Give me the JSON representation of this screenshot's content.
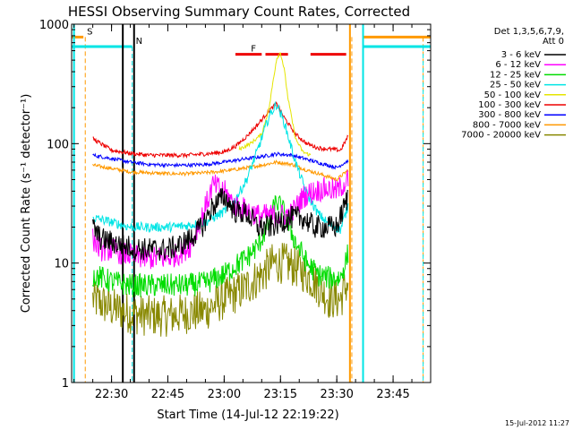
{
  "chart_data": {
    "type": "line",
    "title": "HESSI Observing Summary Count Rates, Corrected",
    "xlabel": "Start Time (14-Jul-12 22:19:22)",
    "ylabel": "Corrected Count Rate (s⁻¹ detector⁻¹)",
    "timestamp": "15-Jul-2012 11:27",
    "yscale": "log",
    "ylim": [
      1,
      1000
    ],
    "xlim": [
      "22:19:22",
      "23:55:00"
    ],
    "x_ticks": [
      "22:30",
      "22:45",
      "23:00",
      "23:15",
      "23:30",
      "23:45"
    ],
    "y_ticks": [
      "1",
      "10",
      "100",
      "1000"
    ],
    "legend": {
      "position": "right",
      "header": [
        "Det 1,3,5,6,7,9,",
        "Att 0"
      ],
      "entries": [
        {
          "label": "3 - 6 keV",
          "color": "#000000"
        },
        {
          "label": "6 - 12 keV",
          "color": "#ff00ff"
        },
        {
          "label": "12 - 25 keV",
          "color": "#00dd00"
        },
        {
          "label": "25 - 50 keV",
          "color": "#00e5e5"
        },
        {
          "label": "50 - 100 keV",
          "color": "#e5e500"
        },
        {
          "label": "100 - 300 keV",
          "color": "#ee0000"
        },
        {
          "label": "300 - 800 keV",
          "color": "#0000ff"
        },
        {
          "label": "800 - 7000 keV",
          "color": "#ff9900"
        },
        {
          "label": "7000 - 20000 keV",
          "color": "#888800"
        }
      ]
    },
    "flags": [
      {
        "label": "S",
        "color": "#ff9900",
        "segments": [
          [
            "22:19:22",
            "22:22:30"
          ],
          [
            "23:37:00",
            "23:55:00"
          ]
        ],
        "level": 780,
        "edges": [
          "22:23:00",
          "23:34:00",
          "23:53:00"
        ]
      },
      {
        "label": "N",
        "color": "#00e5e5",
        "segments": [
          [
            "22:19:22",
            "22:35:30"
          ],
          [
            "23:37:00",
            "23:55:00"
          ]
        ],
        "level": 650,
        "edges": [
          "22:20:00",
          "22:35:30",
          "23:37:00",
          "23:53:00"
        ]
      },
      {
        "label": "F",
        "color": "#ee0000",
        "segments": [
          [
            "23:03:00",
            "23:10:00"
          ],
          [
            "23:11:00",
            "23:17:00"
          ],
          [
            "23:23:00",
            "23:32:30"
          ]
        ],
        "level": 560
      }
    ],
    "data_window": [
      "22:25:00",
      "23:33:00"
    ],
    "attenuator_markers": [
      {
        "time": "22:20:00",
        "color": "#00e5e5"
      },
      {
        "time": "22:33:00",
        "color": "#000000"
      },
      {
        "time": "22:36:00",
        "color": "#000000"
      },
      {
        "time": "23:33:30",
        "color": "#ff9900"
      },
      {
        "time": "23:37:00",
        "color": "#00e5e5"
      }
    ],
    "series": [
      {
        "name": "3 - 6 keV",
        "color": "#000000",
        "noise": 0.2,
        "x": [
          "22:25",
          "22:27",
          "22:30",
          "22:33",
          "22:36",
          "22:39",
          "22:42",
          "22:45",
          "22:48",
          "22:51",
          "22:54",
          "22:57",
          "23:00",
          "23:03",
          "23:06",
          "23:09",
          "23:12",
          "23:15",
          "23:18",
          "23:21",
          "23:24",
          "23:27",
          "23:30",
          "23:33"
        ],
        "y": [
          20,
          16,
          15,
          14,
          13.5,
          13,
          13,
          13,
          14,
          16,
          20,
          30,
          36,
          27,
          26,
          20,
          20,
          22,
          24,
          24,
          20,
          20,
          20,
          36
        ]
      },
      {
        "name": "6 - 12 keV",
        "color": "#ff00ff",
        "noise": 0.2,
        "x": [
          "22:25",
          "22:27",
          "22:30",
          "22:33",
          "22:36",
          "22:39",
          "22:42",
          "22:45",
          "22:48",
          "22:51",
          "22:54",
          "22:57",
          "23:00",
          "23:03",
          "23:06",
          "23:09",
          "23:12",
          "23:15",
          "23:18",
          "23:21",
          "23:24",
          "23:27",
          "23:30",
          "23:33"
        ],
        "y": [
          16,
          13,
          13,
          12,
          11.5,
          11,
          11,
          11,
          12,
          14,
          24,
          45,
          40,
          30,
          28,
          25,
          25,
          25,
          26,
          36,
          40,
          42,
          40,
          50
        ]
      },
      {
        "name": "12 - 25 keV",
        "color": "#00dd00",
        "noise": 0.2,
        "x": [
          "22:25",
          "22:30",
          "22:35",
          "22:40",
          "22:45",
          "22:50",
          "22:55",
          "23:00",
          "23:03",
          "23:06",
          "23:09",
          "23:12",
          "23:14",
          "23:16",
          "23:19",
          "23:22",
          "23:25",
          "23:28",
          "23:31",
          "23:33"
        ],
        "y": [
          8,
          7,
          6.5,
          6.5,
          6.5,
          6.5,
          6.8,
          8,
          9.5,
          11,
          14,
          22,
          33,
          26,
          15,
          10,
          8,
          7.5,
          7.5,
          12
        ]
      },
      {
        "name": "25 - 50 keV",
        "color": "#00e5e5",
        "noise": 0.08,
        "x": [
          "22:25",
          "22:30",
          "22:35",
          "22:40",
          "22:45",
          "22:50",
          "22:55",
          "23:00",
          "23:03",
          "23:06",
          "23:09",
          "23:12",
          "23:14",
          "23:16",
          "23:19",
          "23:22",
          "23:25",
          "23:28",
          "23:31",
          "23:33"
        ],
        "y": [
          24,
          22,
          20,
          20,
          20,
          20.5,
          22,
          27,
          34,
          50,
          90,
          170,
          215,
          150,
          70,
          38,
          26,
          21,
          19,
          30
        ]
      },
      {
        "name": "50 - 100 keV",
        "color": "#e5e500",
        "noise": 0.03,
        "x": [
          "23:04",
          "23:07",
          "23:10",
          "23:12",
          "23:13",
          "23:14",
          "23:15",
          "23:16",
          "23:17",
          "23:19",
          "23:21",
          "23:23"
        ],
        "y": [
          90,
          100,
          120,
          200,
          330,
          520,
          580,
          420,
          240,
          110,
          85,
          80
        ]
      },
      {
        "name": "100 - 300 keV",
        "color": "#ee0000",
        "noise": 0.035,
        "x": [
          "22:25",
          "22:30",
          "22:35",
          "22:40",
          "22:45",
          "22:50",
          "22:55",
          "23:00",
          "23:03",
          "23:06",
          "23:09",
          "23:12",
          "23:14",
          "23:16",
          "23:19",
          "23:22",
          "23:25",
          "23:28",
          "23:31",
          "23:33"
        ],
        "y": [
          110,
          88,
          83,
          80,
          80,
          80,
          82,
          85,
          95,
          115,
          145,
          190,
          215,
          165,
          120,
          100,
          92,
          90,
          88,
          115
        ]
      },
      {
        "name": "300 - 800 keV",
        "color": "#0000ff",
        "noise": 0.03,
        "x": [
          "22:25",
          "22:30",
          "22:35",
          "22:40",
          "22:45",
          "22:50",
          "22:55",
          "23:00",
          "23:05",
          "23:10",
          "23:14",
          "23:18",
          "23:22",
          "23:26",
          "23:30",
          "23:33"
        ],
        "y": [
          80,
          75,
          70,
          67,
          66,
          66,
          67,
          70,
          74,
          78,
          82,
          80,
          74,
          68,
          63,
          72
        ]
      },
      {
        "name": "800 - 7000 keV",
        "color": "#ff9900",
        "noise": 0.03,
        "x": [
          "22:25",
          "22:30",
          "22:35",
          "22:40",
          "22:45",
          "22:50",
          "22:55",
          "23:00",
          "23:05",
          "23:10",
          "23:14",
          "23:18",
          "23:22",
          "23:26",
          "23:30",
          "23:33"
        ],
        "y": [
          66,
          62,
          58,
          57,
          56,
          56,
          57,
          59,
          62,
          66,
          70,
          67,
          60,
          55,
          50,
          60
        ]
      },
      {
        "name": "7000 - 20000 keV",
        "color": "#888800",
        "noise": 0.35,
        "x": [
          "22:25",
          "22:30",
          "22:35",
          "22:40",
          "22:45",
          "22:50",
          "22:55",
          "23:00",
          "23:05",
          "23:10",
          "23:13",
          "23:16",
          "23:20",
          "23:24",
          "23:28",
          "23:31",
          "23:33"
        ],
        "y": [
          5,
          4.2,
          3.8,
          3.6,
          3.6,
          3.8,
          4,
          5,
          6,
          8,
          10,
          10,
          9,
          7,
          5,
          5,
          7
        ]
      }
    ]
  }
}
